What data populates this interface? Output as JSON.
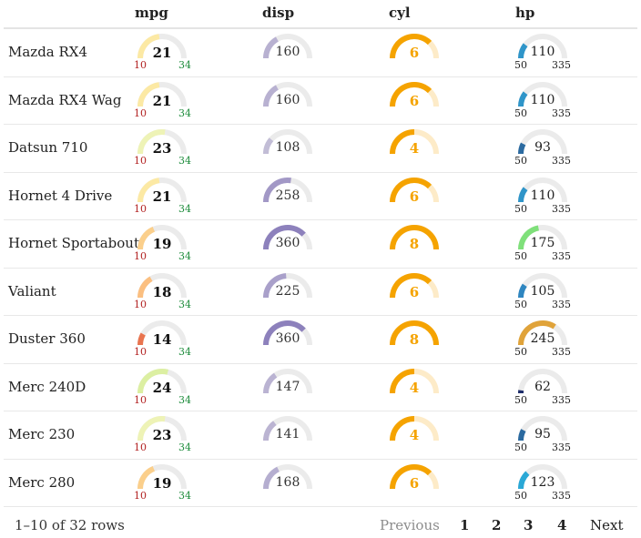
{
  "columns": {
    "mpg": "mpg",
    "disp": "disp",
    "cyl": "cyl",
    "hp": "hp"
  },
  "gauge_colors": {
    "track": "#ebebeb",
    "mpg_min_label": "#b22222",
    "mpg_max_label": "#1e8c3c",
    "disp": "#7666b0",
    "cyl": "#f5a300",
    "cyl_track": "#fdebc8",
    "cyl_text": "#f5a300",
    "hp_label": "#222222"
  },
  "ranges": {
    "mpg": {
      "min": "10",
      "max": "34"
    },
    "disp": {
      "min": 70,
      "max": 472
    },
    "cyl": {
      "min": 4,
      "max": 8
    },
    "hp": {
      "min": "50",
      "max": "335"
    }
  },
  "rows": [
    {
      "name": "Mazda RX4",
      "mpg": "21",
      "disp": "160",
      "cyl": "6",
      "hp": "110",
      "mpg_color": "#fce9a4",
      "hp_color": "#2f95c9"
    },
    {
      "name": "Mazda RX4 Wag",
      "mpg": "21",
      "disp": "160",
      "cyl": "6",
      "hp": "110",
      "mpg_color": "#fce9a4",
      "hp_color": "#2f95c9"
    },
    {
      "name": "Datsun 710",
      "mpg": "23",
      "disp": "108",
      "cyl": "4",
      "hp": "93",
      "mpg_color": "#eef3b6",
      "hp_color": "#2b6aa0"
    },
    {
      "name": "Hornet 4 Drive",
      "mpg": "21",
      "disp": "258",
      "cyl": "6",
      "hp": "110",
      "mpg_color": "#fce9a4",
      "hp_color": "#2f95c9"
    },
    {
      "name": "Hornet Sportabout",
      "mpg": "19",
      "disp": "360",
      "cyl": "8",
      "hp": "175",
      "mpg_color": "#fbcf8b",
      "hp_color": "#7fe07a"
    },
    {
      "name": "Valiant",
      "mpg": "18",
      "disp": "225",
      "cyl": "6",
      "hp": "105",
      "mpg_color": "#fbbf80",
      "hp_color": "#2f86c0"
    },
    {
      "name": "Duster 360",
      "mpg": "14",
      "disp": "360",
      "cyl": "8",
      "hp": "245",
      "mpg_color": "#e9744f",
      "hp_color": "#e0a33a"
    },
    {
      "name": "Merc 240D",
      "mpg": "24",
      "disp": "147",
      "cyl": "4",
      "hp": "62",
      "mpg_color": "#dcefa2",
      "hp_color": "#1e2d6a"
    },
    {
      "name": "Merc 230",
      "mpg": "23",
      "disp": "141",
      "cyl": "4",
      "hp": "95",
      "mpg_color": "#eef3b6",
      "hp_color": "#2b6aa0"
    },
    {
      "name": "Merc 280",
      "mpg": "19",
      "disp": "168",
      "cyl": "6",
      "hp": "123",
      "mpg_color": "#fbcf8b",
      "hp_color": "#2aa8d6"
    }
  ],
  "footer": {
    "rows_info": "1–10 of 32 rows",
    "previous": "Previous",
    "pages": [
      "1",
      "2",
      "3",
      "4"
    ],
    "next": "Next"
  }
}
